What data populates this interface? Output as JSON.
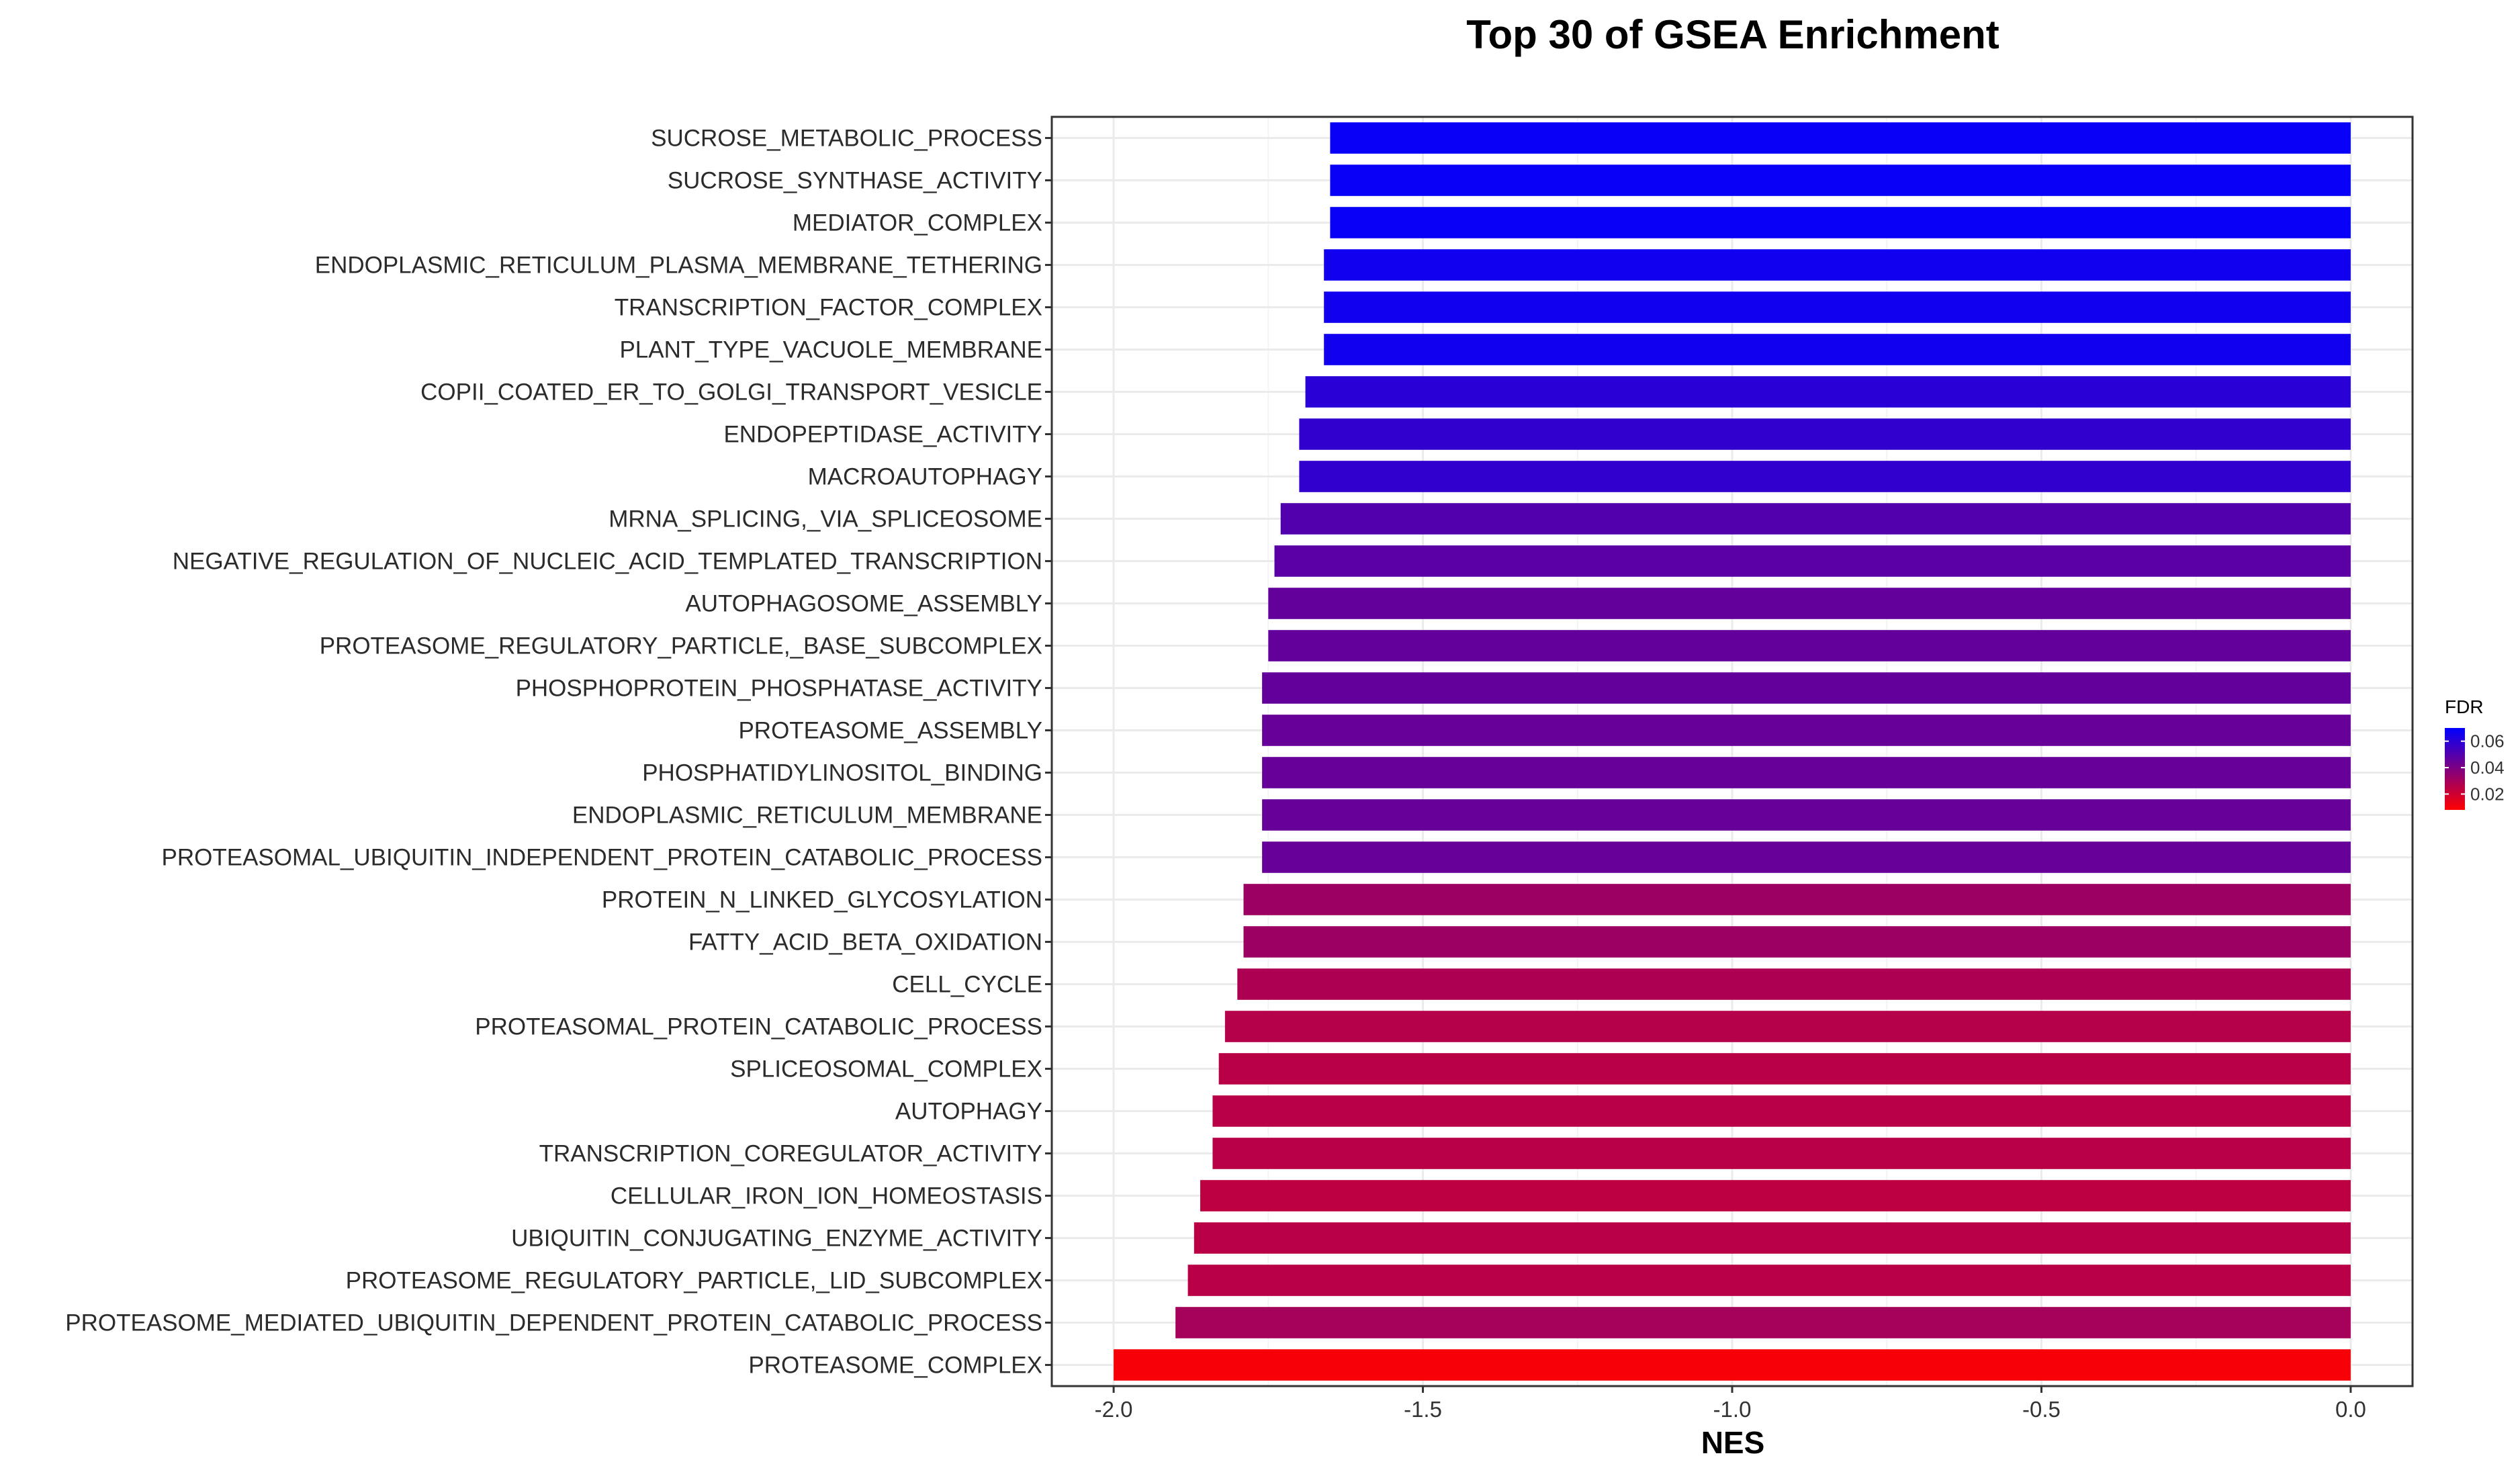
{
  "chart_data": {
    "type": "bar",
    "orientation": "horizontal",
    "title": "Top 30 of GSEA Enrichment",
    "xlabel": "NES",
    "ylabel": "",
    "xlim": [
      -2.1,
      0.1
    ],
    "xticks": [
      -2.0,
      -1.5,
      -1.0,
      -0.5,
      0.0
    ],
    "xtick_labels": [
      "-2.0",
      "-1.5",
      "-1.0",
      "-0.5",
      "0.0"
    ],
    "grid": true,
    "categories": [
      "SUCROSE_METABOLIC_PROCESS",
      "SUCROSE_SYNTHASE_ACTIVITY",
      "MEDIATOR_COMPLEX",
      "ENDOPLASMIC_RETICULUM_PLASMA_MEMBRANE_TETHERING",
      "TRANSCRIPTION_FACTOR_COMPLEX",
      "PLANT_TYPE_VACUOLE_MEMBRANE",
      "COPII_COATED_ER_TO_GOLGI_TRANSPORT_VESICLE",
      "ENDOPEPTIDASE_ACTIVITY",
      "MACROAUTOPHAGY",
      "MRNA_SPLICING,_VIA_SPLICEOSOME",
      "NEGATIVE_REGULATION_OF_NUCLEIC_ACID_TEMPLATED_TRANSCRIPTION",
      "AUTOPHAGOSOME_ASSEMBLY",
      "PROTEASOME_REGULATORY_PARTICLE,_BASE_SUBCOMPLEX",
      "PHOSPHOPROTEIN_PHOSPHATASE_ACTIVITY",
      "PROTEASOME_ASSEMBLY",
      "PHOSPHATIDYLINOSITOL_BINDING",
      "ENDOPLASMIC_RETICULUM_MEMBRANE",
      "PROTEASOMAL_UBIQUITIN_INDEPENDENT_PROTEIN_CATABOLIC_PROCESS",
      "PROTEIN_N_LINKED_GLYCOSYLATION",
      "FATTY_ACID_BETA_OXIDATION",
      "CELL_CYCLE",
      "PROTEASOMAL_PROTEIN_CATABOLIC_PROCESS",
      "SPLICEOSOMAL_COMPLEX",
      "AUTOPHAGY",
      "TRANSCRIPTION_COREGULATOR_ACTIVITY",
      "CELLULAR_IRON_ION_HOMEOSTASIS",
      "UBIQUITIN_CONJUGATING_ENZYME_ACTIVITY",
      "PROTEASOME_REGULATORY_PARTICLE,_LID_SUBCOMPLEX",
      "PROTEASOME_MEDIATED_UBIQUITIN_DEPENDENT_PROTEIN_CATABOLIC_PROCESS",
      "PROTEASOME_COMPLEX"
    ],
    "values": [
      -1.65,
      -1.65,
      -1.65,
      -1.66,
      -1.66,
      -1.66,
      -1.69,
      -1.7,
      -1.7,
      -1.73,
      -1.74,
      -1.75,
      -1.75,
      -1.76,
      -1.76,
      -1.76,
      -1.76,
      -1.76,
      -1.79,
      -1.79,
      -1.8,
      -1.82,
      -1.83,
      -1.84,
      -1.84,
      -1.86,
      -1.87,
      -1.88,
      -1.9,
      -2.0
    ],
    "fdr": [
      0.068,
      0.068,
      0.068,
      0.066,
      0.066,
      0.066,
      0.06,
      0.058,
      0.058,
      0.05,
      0.048,
      0.046,
      0.046,
      0.046,
      0.045,
      0.045,
      0.045,
      0.045,
      0.032,
      0.032,
      0.028,
      0.026,
      0.025,
      0.025,
      0.025,
      0.024,
      0.025,
      0.025,
      0.03,
      0.01
    ],
    "legend": {
      "title": "FDR",
      "position": "right",
      "ticks": [
        0.06,
        0.04,
        0.02
      ],
      "tick_labels": [
        "0.06",
        "0.04",
        "0.02"
      ],
      "range": [
        0.008,
        0.07
      ],
      "color_low": "#ff0000",
      "color_high": "#0000ff"
    },
    "colors": {
      "background": "#ffffff",
      "grid": "#ebebeb",
      "panel_border": "#333333"
    }
  }
}
